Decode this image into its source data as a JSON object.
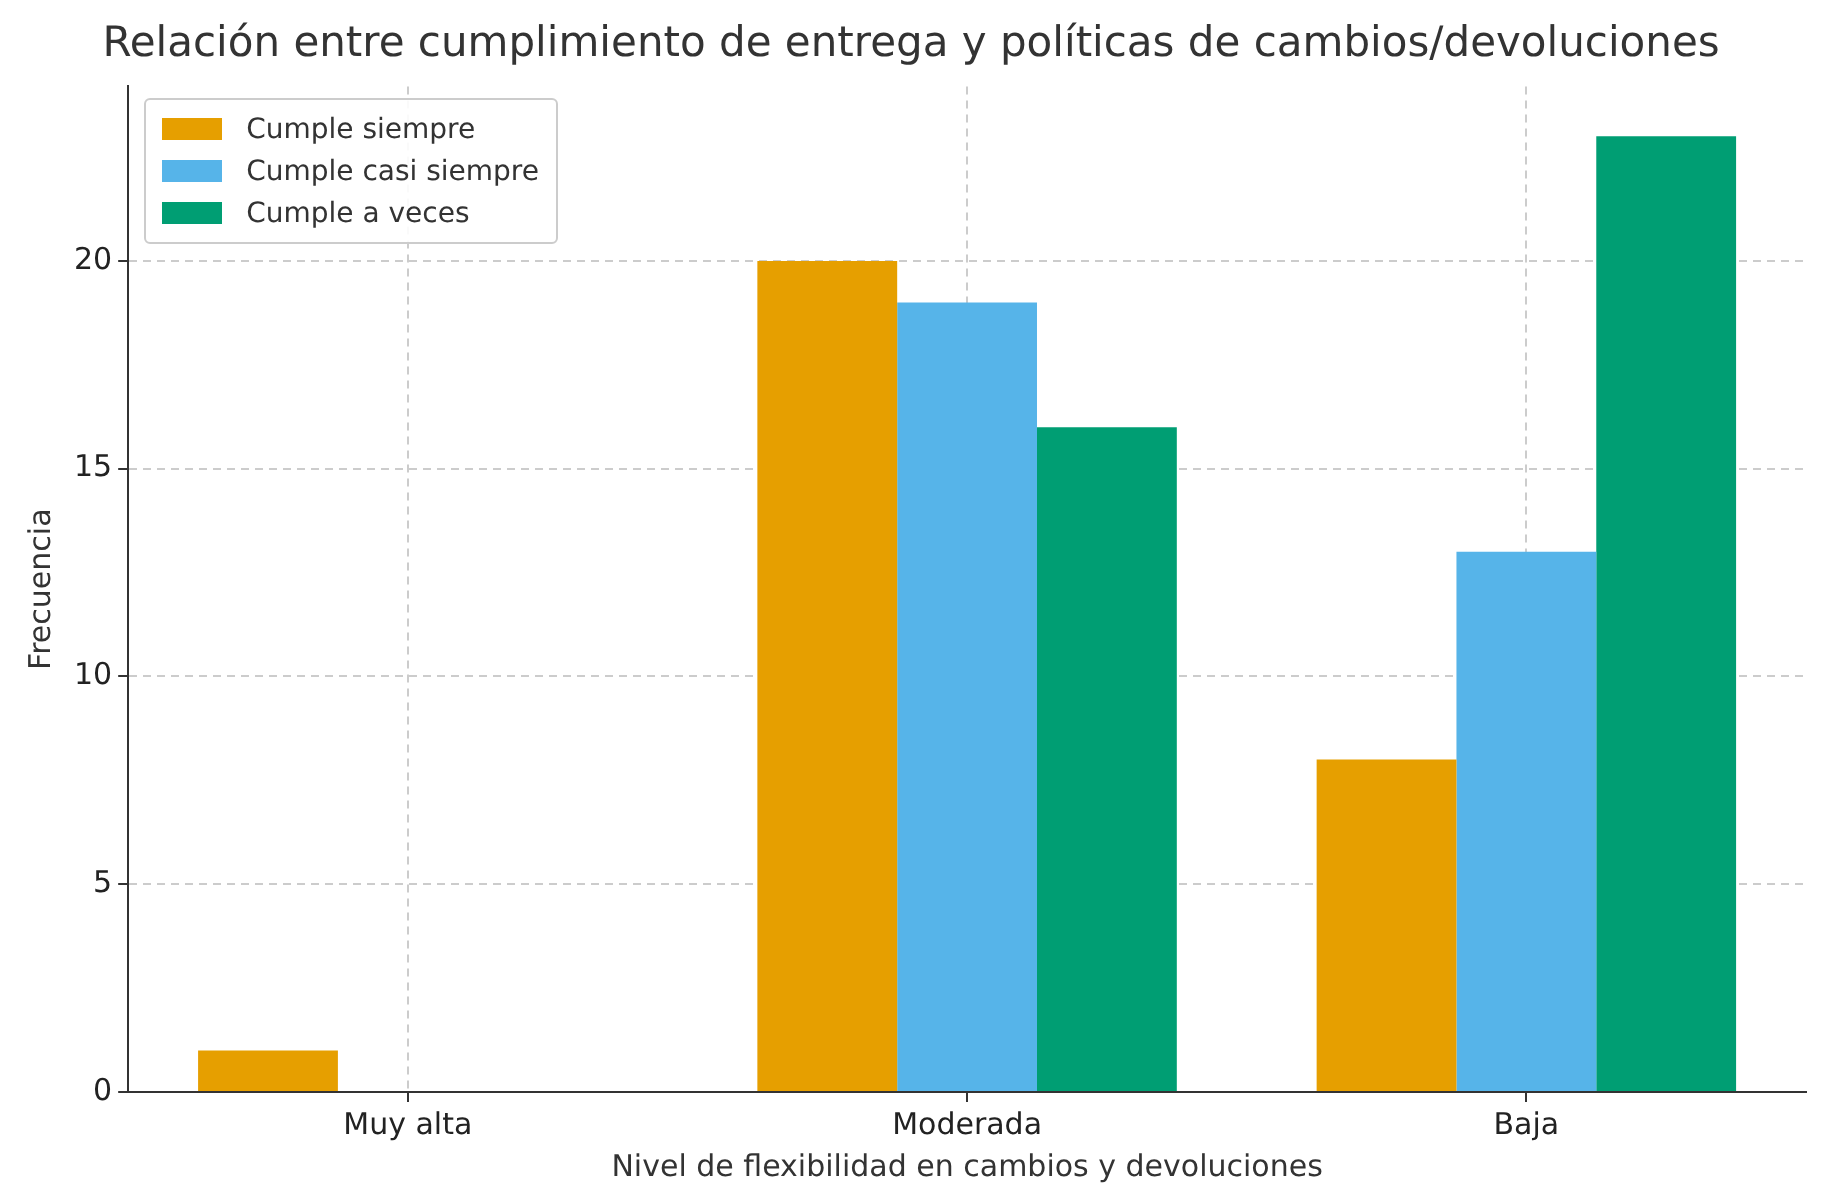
{
  "chart_data": {
    "type": "bar",
    "title": "Relación entre cumplimiento de entrega y políticas de cambios/devoluciones",
    "xlabel": "Nivel de flexibilidad en cambios y devoluciones",
    "ylabel": "Frecuencia",
    "categories": [
      "Muy alta",
      "Moderada",
      "Baja"
    ],
    "series": [
      {
        "name": "Cumple siempre",
        "color": "#e69f00",
        "values": [
          1,
          20,
          8
        ]
      },
      {
        "name": "Cumple casi siempre",
        "color": "#56b4e9",
        "values": [
          0,
          19,
          13
        ]
      },
      {
        "name": "Cumple a veces",
        "color": "#009e73",
        "values": [
          0,
          16,
          23
        ]
      }
    ],
    "ylim": [
      0,
      24.2
    ],
    "yticks": [
      0,
      5,
      10,
      15,
      20
    ],
    "grid": true,
    "legend": "top left"
  }
}
